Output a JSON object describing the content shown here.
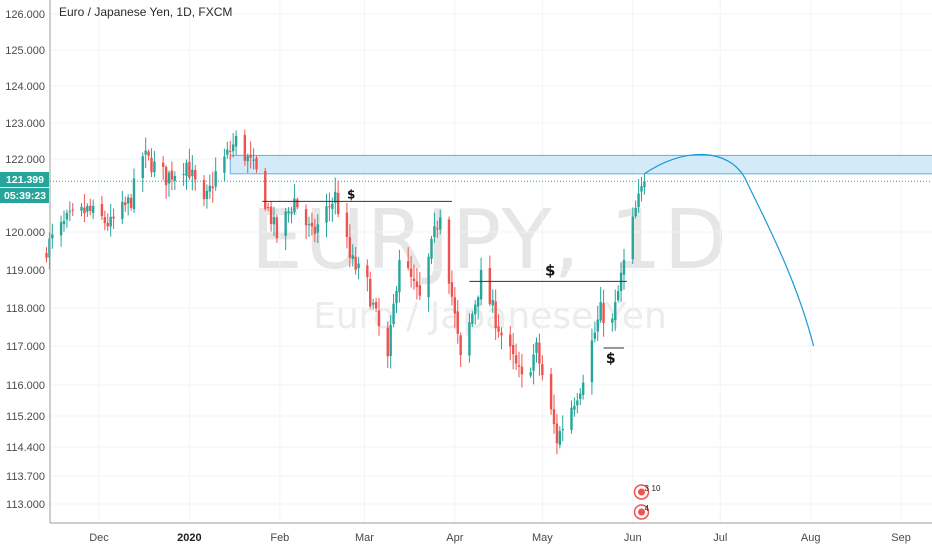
{
  "chart_data": {
    "type": "candlestick",
    "title": "Euro / Japanese Yen, 1D, FXCM",
    "symbol": "EURJPY",
    "interval": "1D",
    "watermark_symbol": "EURJPY, 1D",
    "watermark_name": "Euro / Japanese Yen",
    "y_ticks": [
      "126.000",
      "125.000",
      "124.000",
      "123.000",
      "122.000",
      "120.000",
      "119.000",
      "118.000",
      "117.000",
      "116.000",
      "115.200",
      "114.400",
      "113.700",
      "113.000"
    ],
    "x_ticks": [
      {
        "label": "Dec",
        "date": "2019-12-01",
        "bold": false
      },
      {
        "label": "2020",
        "date": "2020-01-01",
        "bold": true
      },
      {
        "label": "Feb",
        "date": "2020-02-01",
        "bold": false
      },
      {
        "label": "Mar",
        "date": "2020-03-01",
        "bold": false
      },
      {
        "label": "Apr",
        "date": "2020-04-01",
        "bold": false
      },
      {
        "label": "May",
        "date": "2020-05-01",
        "bold": false
      },
      {
        "label": "Jun",
        "date": "2020-06-01",
        "bold": false
      },
      {
        "label": "Jul",
        "date": "2020-07-01",
        "bold": false
      },
      {
        "label": "Aug",
        "date": "2020-08-01",
        "bold": false
      },
      {
        "label": "Sep",
        "date": "2020-09-01",
        "bold": false
      }
    ],
    "last_price": "121.399",
    "countdown": "05:39:23",
    "colors": {
      "up": "#26a69a",
      "down": "#ef5350",
      "zone_fill": "#cce6f7",
      "zone_stroke": "#5bb3e6",
      "projection": "#1a9ad6",
      "price_line": "#26a69a"
    },
    "closes_anchor_points": [
      [
        "2019-11-13",
        119.6
      ],
      [
        "2019-11-20",
        120.3
      ],
      [
        "2019-11-27",
        120.6
      ],
      [
        "2019-12-05",
        120.2
      ],
      [
        "2019-12-12",
        120.9
      ],
      [
        "2019-12-16",
        122.1
      ],
      [
        "2019-12-24",
        121.5
      ],
      [
        "2019-12-31",
        121.9
      ],
      [
        "2020-01-06",
        120.7
      ],
      [
        "2020-01-10",
        121.6
      ],
      [
        "2020-01-17",
        122.5
      ],
      [
        "2020-01-24",
        121.6
      ],
      [
        "2020-01-31",
        119.9
      ],
      [
        "2020-02-06",
        120.9
      ],
      [
        "2020-02-12",
        119.9
      ],
      [
        "2020-02-20",
        121.0
      ],
      [
        "2020-02-25",
        119.3
      ],
      [
        "2020-03-02",
        118.6
      ],
      [
        "2020-03-09",
        116.6
      ],
      [
        "2020-03-13",
        119.4
      ],
      [
        "2020-03-20",
        118.2
      ],
      [
        "2020-03-27",
        120.6
      ],
      [
        "2020-04-03",
        116.6
      ],
      [
        "2020-04-10",
        118.8
      ],
      [
        "2020-04-17",
        117.3
      ],
      [
        "2020-04-24",
        116.1
      ],
      [
        "2020-04-29",
        116.9
      ],
      [
        "2020-05-06",
        114.6
      ],
      [
        "2020-05-14",
        116.0
      ],
      [
        "2020-05-21",
        117.9
      ],
      [
        "2020-05-25",
        117.6
      ],
      [
        "2020-05-28",
        118.8
      ],
      [
        "2020-06-02",
        120.6
      ],
      [
        "2020-06-05",
        121.4
      ]
    ],
    "annotations": {
      "resistance_zone": {
        "from": "2020-01-15",
        "to": "2020-09-18",
        "low": 121.6,
        "high": 122.1
      },
      "level_1": {
        "from": "2020-01-26",
        "to": "2020-03-31",
        "price": 120.85,
        "label": "$"
      },
      "level_2": {
        "from": "2020-04-06",
        "to": "2020-05-30",
        "price": 118.7,
        "label": "$"
      },
      "level_3": {
        "from": "2020-05-22",
        "to": "2020-05-29",
        "price": 116.95,
        "label": "$"
      },
      "projection_arc": [
        [
          "2020-06-05",
          121.6
        ],
        [
          "2020-06-24",
          122.2
        ],
        [
          "2020-07-10",
          121.4
        ],
        [
          "2020-08-02",
          117.0
        ]
      ]
    },
    "events": [
      {
        "badge": "3",
        "extra": "10"
      },
      {
        "badge": "4",
        "extra": ""
      }
    ]
  }
}
